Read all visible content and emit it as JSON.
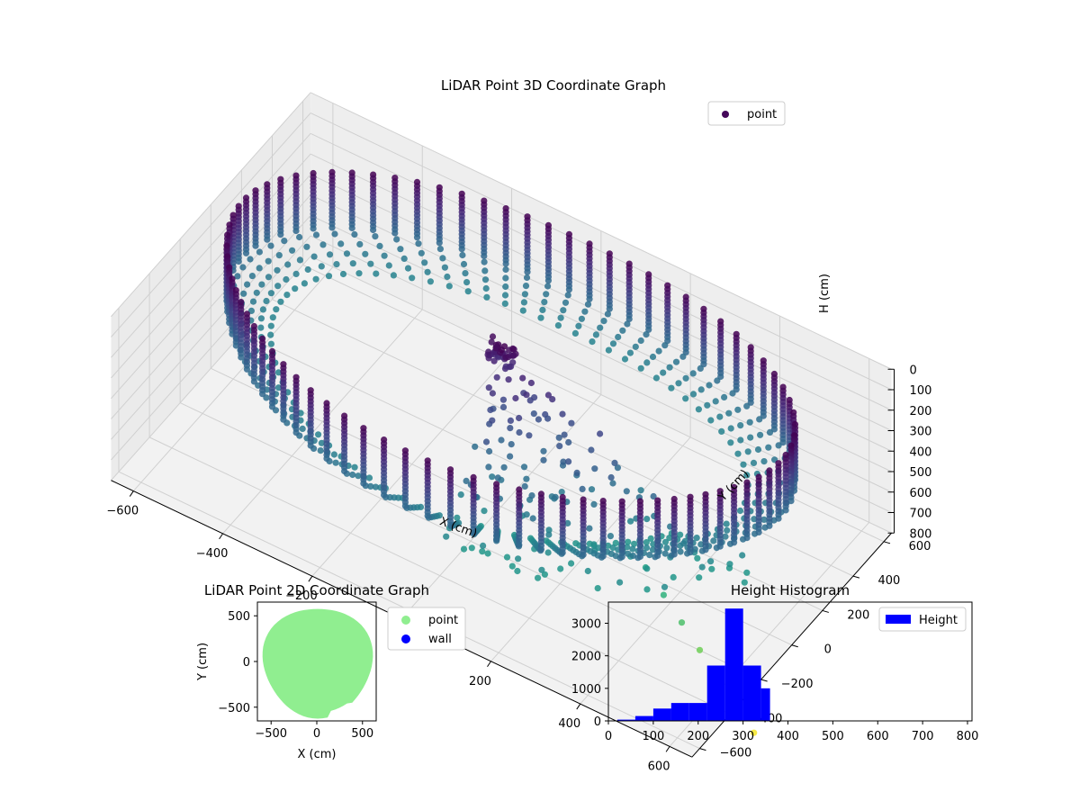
{
  "chart_data": [
    {
      "type": "scatter3d",
      "title": "LiDAR Point 3D Coordinate Graph",
      "xlabel": "X (cm)",
      "ylabel": "Y (cm)",
      "zlabel": "H (cm)",
      "x_ticks": [
        "−600",
        "−400",
        "−200",
        "0",
        "200",
        "400",
        "600"
      ],
      "y_ticks": [
        "−600",
        "−400",
        "−200",
        "0",
        "200",
        "400",
        "600"
      ],
      "z_ticks": [
        "0",
        "100",
        "200",
        "300",
        "400",
        "500",
        "600",
        "700",
        "800"
      ],
      "xlim": [
        -650,
        650
      ],
      "ylim": [
        -650,
        650
      ],
      "zlim": [
        0,
        800
      ],
      "z_axis_inverted": true,
      "colormap": "viridis",
      "legend": [
        "point"
      ],
      "legend_position": "upper right",
      "shape": "ring of vertical point strips, radius ~600 cm, heights ~0–400 cm, plus a sparse fan of outlier points extending toward +X/-Y reaching ~800 cm"
    },
    {
      "type": "scatter",
      "title": "LiDAR Point 2D Coordinate Graph",
      "xlabel": "X (cm)",
      "ylabel": "Y (cm)",
      "x_ticks": [
        "−500",
        "0",
        "500"
      ],
      "y_ticks": [
        "500",
        "0",
        "−500"
      ],
      "xlim": [
        -650,
        650
      ],
      "ylim": [
        -650,
        650
      ],
      "series": [
        {
          "name": "point",
          "color": "#90ee90"
        },
        {
          "name": "wall",
          "color": "#0000ff"
        }
      ],
      "legend_position": "outside right"
    },
    {
      "type": "bar",
      "title": "Height Histogram",
      "x_ticks": [
        "0",
        "100",
        "200",
        "300",
        "400",
        "500",
        "600",
        "700",
        "800"
      ],
      "y_ticks": [
        "0",
        "1000",
        "2000",
        "3000"
      ],
      "xlim": [
        0,
        810
      ],
      "ylim": [
        0,
        3650
      ],
      "series": [
        {
          "name": "Height",
          "color": "#0000ff"
        }
      ],
      "bins": [
        {
          "x0": 0,
          "x1": 20,
          "count": 0
        },
        {
          "x0": 20,
          "x1": 60,
          "count": 40
        },
        {
          "x0": 60,
          "x1": 100,
          "count": 150
        },
        {
          "x0": 100,
          "x1": 140,
          "count": 380
        },
        {
          "x0": 140,
          "x1": 180,
          "count": 550
        },
        {
          "x0": 180,
          "x1": 220,
          "count": 550
        },
        {
          "x0": 220,
          "x1": 260,
          "count": 1700
        },
        {
          "x0": 260,
          "x1": 300,
          "count": 3450
        },
        {
          "x0": 300,
          "x1": 340,
          "count": 1700
        },
        {
          "x0": 340,
          "x1": 360,
          "count": 1000
        }
      ],
      "legend_position": "upper right"
    }
  ]
}
